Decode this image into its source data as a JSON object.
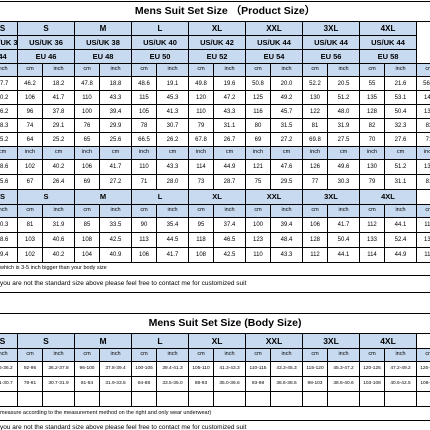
{
  "product_size": {
    "title": "Mens Suit Set Size （Product Size）",
    "sizes": [
      "S",
      "S",
      "M",
      "L",
      "XL",
      "XXL",
      "3XL",
      "4XL"
    ],
    "us_uk": [
      "US/UK 34",
      "US/UK 36",
      "US/UK 38",
      "US/UK 40",
      "US/UK 42",
      "US/UK 44",
      "US/UK 44",
      "US/UK 44"
    ],
    "eu": [
      "44",
      "EU 46",
      "EU 48",
      "EU 50",
      "EU 52",
      "EU 54",
      "EU 56",
      "EU 58"
    ],
    "unit_row": [
      "inch",
      "cm",
      "inch",
      "cm",
      "inch",
      "cm",
      "inch",
      "cm",
      "inch",
      "cm",
      "inch",
      "cm",
      "inch",
      "cm",
      "inch",
      "cm",
      "inch"
    ],
    "jacket_rows": [
      [
        "17.7",
        "46.2",
        "18.2",
        "47.8",
        "18.8",
        "48.6",
        "19.1",
        "49.8",
        "19.6",
        "50.8",
        "20.0",
        "52.2",
        "20.5",
        "55",
        "21.6",
        "56.2",
        "22.1"
      ],
      [
        "40.2",
        "106",
        "41.7",
        "110",
        "43.3",
        "115",
        "45.3",
        "120",
        "47.2",
        "125",
        "49.2",
        "130",
        "51.2",
        "135",
        "53.1",
        "140",
        "55.1"
      ],
      [
        "36.2",
        "96",
        "37.8",
        "100",
        "39.4",
        "105",
        "41.3",
        "110",
        "43.3",
        "116",
        "45.7",
        "122",
        "48.0",
        "128",
        "50.4",
        "132",
        "52.0"
      ],
      [
        "28.3",
        "74",
        "29.1",
        "76",
        "29.9",
        "78",
        "30.7",
        "79",
        "31.1",
        "80",
        "31.5",
        "81",
        "31.9",
        "82",
        "32.3",
        "83",
        "32.7"
      ],
      [
        "25.2",
        "64",
        "25.2",
        "65",
        "25.6",
        "66.5",
        "26.2",
        "67.8",
        "26.7",
        "69",
        "27.2",
        "69.8",
        "27.5",
        "70",
        "27.6",
        "71",
        "28.0"
      ]
    ],
    "mid_unit_row": [
      "cm",
      "inch",
      "cm",
      "inch",
      "cm",
      "inch",
      "cm",
      "inch",
      "cm",
      "inch",
      "cm",
      "inch",
      "cm",
      "inch",
      "cm",
      "inch",
      "cm"
    ],
    "mid_rows": [
      [
        "38.6",
        "102",
        "40.2",
        "106",
        "41.7",
        "110",
        "43.3",
        "114",
        "44.9",
        "121",
        "47.6",
        "126",
        "49.6",
        "130",
        "51.2",
        "134",
        "52.8"
      ],
      [
        "25.6",
        "67",
        "26.4",
        "69",
        "27.2",
        "71",
        "28.0",
        "73",
        "28.7",
        "75",
        "29.5",
        "77",
        "30.3",
        "79",
        "31.1",
        "81",
        "31.9"
      ]
    ],
    "pants_sizes": [
      "S",
      "S",
      "M",
      "L",
      "XL",
      "XXL",
      "3XL",
      "4XL"
    ],
    "pants_unit_row": [
      "inch",
      "cm",
      "inch",
      "cm",
      "inch",
      "cm",
      "inch",
      "cm",
      "inch",
      "cm",
      "inch",
      "cm",
      "inch",
      "cm",
      "inch",
      "cm",
      "inch"
    ],
    "pants_rows": [
      [
        "30.3",
        "81",
        "31.9",
        "85",
        "33.5",
        "90",
        "35.4",
        "95",
        "37.4",
        "100",
        "39.4",
        "106",
        "41.7",
        "112",
        "44.1",
        "118",
        "46.5"
      ],
      [
        "38.6",
        "103",
        "40.6",
        "108",
        "42.5",
        "113",
        "44.5",
        "118",
        "46.5",
        "123",
        "48.4",
        "128",
        "50.4",
        "133",
        "52.4",
        "138",
        "54.3"
      ],
      [
        "39.4",
        "102",
        "40.2",
        "104",
        "40.9",
        "106",
        "41.7",
        "108",
        "42.5",
        "110",
        "43.3",
        "112",
        "44.1",
        "114",
        "44.9",
        "116",
        "45.7"
      ]
    ],
    "note_1": "which is 3-5 inch bigger than your body size",
    "note_2": "you are not the standard size above please feel free to contact me for customized suit"
  },
  "body_size": {
    "title": "Mens Suit Set Size (Body Size)",
    "sizes": [
      "S",
      "S",
      "M",
      "L",
      "XL",
      "XXL",
      "3XL",
      "4XL"
    ],
    "unit_row": [
      "inch",
      "cm",
      "inch",
      "cm",
      "inch",
      "cm",
      "inch",
      "cm",
      "inch",
      "cm",
      "inch",
      "cm",
      "inch",
      "cm",
      "inch",
      "cm",
      "inch"
    ],
    "rows": [
      [
        "34.6-36.2",
        "92-96",
        "36.2-37.8",
        "96-100",
        "37.8-39.4",
        "100-105",
        "39.4-41.3",
        "105-110",
        "41.3-43.3",
        "110-115",
        "43.3-45.3",
        "115-120",
        "45.3-47.2",
        "120-125",
        "47.2-49.2",
        "125-130",
        "49.2-51.2"
      ],
      [
        "29.1-30.7",
        "78-81",
        "30.7-31.9",
        "81-84",
        "31.9-33.5",
        "84-88",
        "33.5-35.0",
        "88-93",
        "35.0-36.6",
        "93-98",
        "36.6-38.6",
        "98-103",
        "38.6-40.6",
        "103-108",
        "40.6-42.5",
        "108-113",
        "42.5-44.5"
      ],
      [
        "",
        "",
        "",
        "",
        "",
        "",
        "",
        "",
        "",
        "",
        "",
        "",
        "",
        "",
        "",
        "",
        ""
      ]
    ],
    "note_1": "measure according to the measurement method on the right and only wear underwear)",
    "note_2": "you are not the standard size above please feel free to contact me for customized suit"
  },
  "colors": {
    "header_blue": "#c8daf0",
    "grid": "#000000"
  }
}
